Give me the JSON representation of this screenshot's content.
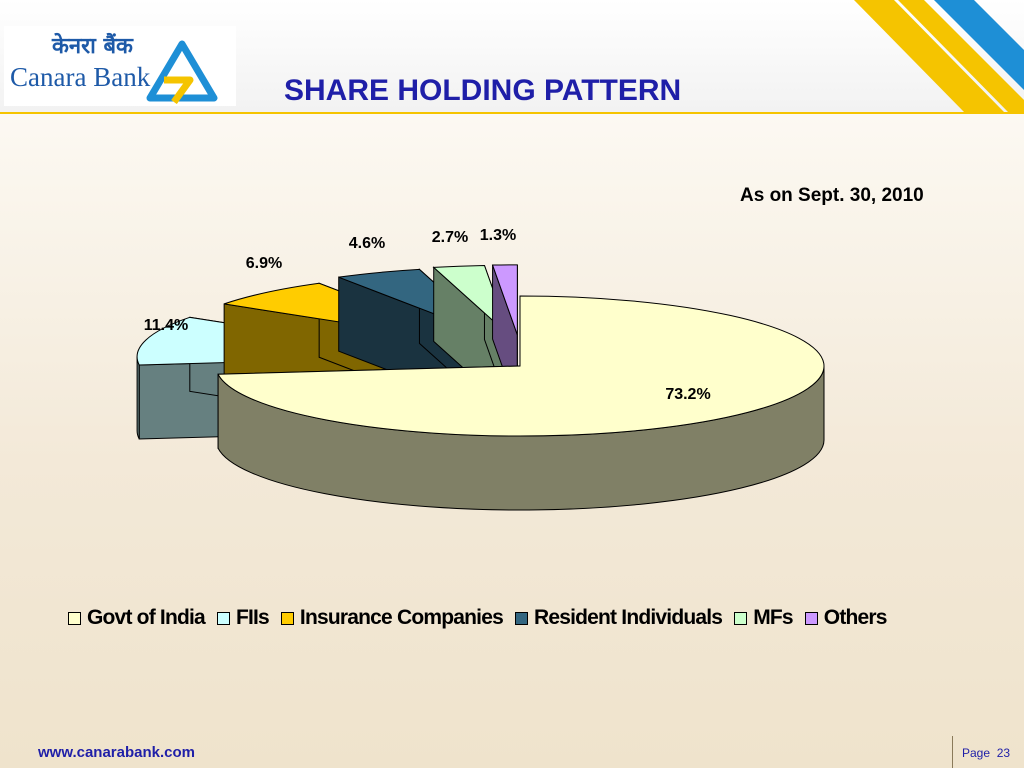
{
  "header": {
    "logo_hindi": "केनरा बैंक",
    "logo_english": "Canara Bank",
    "title": "SHARE HOLDING PATTERN"
  },
  "subtitle": "As on Sept. 30, 2010",
  "chart_data": {
    "type": "pie",
    "style": "3d-exploded",
    "categories": [
      "Govt of India",
      "FIIs",
      "Insurance Companies",
      "Resident Individuals",
      "MFs",
      "Others"
    ],
    "values": [
      73.2,
      11.4,
      6.9,
      4.6,
      2.7,
      1.3
    ],
    "labels": [
      "73.2%",
      "11.4%",
      "6.9%",
      "4.6%",
      "2.7%",
      "1.3%"
    ],
    "colors": [
      "#ffffcc",
      "#ccffff",
      "#ffcc00",
      "#336680",
      "#ccffcc",
      "#cc99ff"
    ],
    "legend_position": "bottom"
  },
  "footer": {
    "website": "www.canarabank.com",
    "page_label": "Page",
    "page_number": "23"
  }
}
